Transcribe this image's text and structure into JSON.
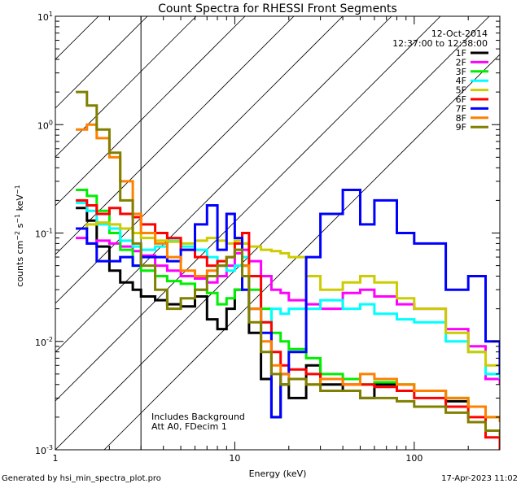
{
  "footer": {
    "left": "Generated by hsi_min_spectra_plot.pro",
    "right": "17-Apr-2023 11:02"
  },
  "chart_data": {
    "type": "line",
    "title": "Count Spectra for RHESSI Front Segments",
    "xlabel": "Energy (keV)",
    "ylabel": "counts cm⁻² s⁻¹ keV⁻¹",
    "xscale": "log",
    "yscale": "log",
    "xlim": [
      1,
      300
    ],
    "ylim": [
      0.001,
      10
    ],
    "x_ticks": [
      {
        "v": 1,
        "label": "1"
      },
      {
        "v": 10,
        "label": "10"
      },
      {
        "v": 100,
        "label": "100"
      }
    ],
    "y_ticks": [
      {
        "v": 0.001,
        "mant": "10",
        "exp": "-3"
      },
      {
        "v": 0.01,
        "mant": "10",
        "exp": "-2"
      },
      {
        "v": 0.1,
        "mant": "10",
        "exp": "-1"
      },
      {
        "v": 1,
        "mant": "10",
        "exp": "0"
      },
      {
        "v": 10,
        "mant": "10",
        "exp": "1"
      }
    ],
    "hatched_below_keV": 3,
    "date": "12-Oct-2014",
    "time_range": "12:37:00 to 12:38:00",
    "annotations": [
      "Includes Background",
      "Att A0, FDecim 1"
    ],
    "legend_position": "top-right",
    "series": [
      {
        "name": "1F",
        "color": "#000000",
        "points": [
          [
            1.3,
            0.17
          ],
          [
            1.5,
            0.13
          ],
          [
            1.7,
            0.075
          ],
          [
            2.0,
            0.045
          ],
          [
            2.3,
            0.035
          ],
          [
            2.7,
            0.03
          ],
          [
            3.0,
            0.026
          ],
          [
            3.6,
            0.024
          ],
          [
            4.2,
            0.022
          ],
          [
            5.0,
            0.021
          ],
          [
            6.0,
            0.026
          ],
          [
            7.0,
            0.016
          ],
          [
            8.0,
            0.013
          ],
          [
            9.0,
            0.02
          ],
          [
            10.0,
            0.03
          ],
          [
            11.0,
            0.05
          ],
          [
            12.0,
            0.012
          ],
          [
            14.0,
            0.0045
          ],
          [
            16.0,
            0.002
          ],
          [
            18.0,
            0.004
          ],
          [
            20.0,
            0.003
          ],
          [
            25.0,
            0.006
          ],
          [
            30.0,
            0.004
          ],
          [
            40.0,
            0.0035
          ],
          [
            50.0,
            0.003
          ],
          [
            60.0,
            0.004
          ],
          [
            80.0,
            0.0035
          ],
          [
            100.0,
            0.0035
          ],
          [
            150.0,
            0.0028
          ],
          [
            200.0,
            0.0025
          ],
          [
            250.0,
            0.0015
          ],
          [
            300.0,
            0.0012
          ]
        ]
      },
      {
        "name": "2F",
        "color": "#ff00ff",
        "points": [
          [
            1.3,
            0.09
          ],
          [
            1.5,
            0.08
          ],
          [
            1.7,
            0.085
          ],
          [
            2.0,
            0.08
          ],
          [
            2.3,
            0.075
          ],
          [
            2.7,
            0.068
          ],
          [
            3.0,
            0.062
          ],
          [
            3.6,
            0.05
          ],
          [
            4.2,
            0.045
          ],
          [
            5.0,
            0.04
          ],
          [
            6.0,
            0.038
          ],
          [
            7.0,
            0.035
          ],
          [
            8.0,
            0.04
          ],
          [
            9.0,
            0.05
          ],
          [
            10.0,
            0.065
          ],
          [
            11.0,
            0.07
          ],
          [
            12.0,
            0.055
          ],
          [
            14.0,
            0.04
          ],
          [
            16.0,
            0.03
          ],
          [
            18.0,
            0.028
          ],
          [
            20.0,
            0.024
          ],
          [
            25.0,
            0.022
          ],
          [
            30.0,
            0.02
          ],
          [
            40.0,
            0.028
          ],
          [
            50.0,
            0.03
          ],
          [
            60.0,
            0.026
          ],
          [
            80.0,
            0.022
          ],
          [
            100.0,
            0.02
          ],
          [
            150.0,
            0.013
          ],
          [
            200.0,
            0.009
          ],
          [
            250.0,
            0.0045
          ],
          [
            300.0,
            0.004
          ]
        ]
      },
      {
        "name": "3F",
        "color": "#00ee00",
        "points": [
          [
            1.3,
            0.25
          ],
          [
            1.5,
            0.22
          ],
          [
            1.7,
            0.16
          ],
          [
            2.0,
            0.1
          ],
          [
            2.3,
            0.07
          ],
          [
            2.7,
            0.05
          ],
          [
            3.0,
            0.045
          ],
          [
            3.6,
            0.04
          ],
          [
            4.2,
            0.036
          ],
          [
            5.0,
            0.034
          ],
          [
            6.0,
            0.03
          ],
          [
            7.0,
            0.028
          ],
          [
            8.0,
            0.022
          ],
          [
            9.0,
            0.025
          ],
          [
            10.0,
            0.03
          ],
          [
            11.0,
            0.08
          ],
          [
            12.0,
            0.03
          ],
          [
            14.0,
            0.02
          ],
          [
            16.0,
            0.012
          ],
          [
            18.0,
            0.01
          ],
          [
            20.0,
            0.0085
          ],
          [
            25.0,
            0.007
          ],
          [
            30.0,
            0.005
          ],
          [
            40.0,
            0.0045
          ],
          [
            50.0,
            0.004
          ],
          [
            60.0,
            0.0042
          ],
          [
            80.0,
            0.004
          ],
          [
            100.0,
            0.0035
          ],
          [
            150.0,
            0.003
          ],
          [
            200.0,
            0.0025
          ],
          [
            250.0,
            0.002
          ],
          [
            300.0,
            0.0018
          ]
        ]
      },
      {
        "name": "4F",
        "color": "#00ffff",
        "points": [
          [
            1.3,
            0.19
          ],
          [
            1.5,
            0.16
          ],
          [
            1.7,
            0.12
          ],
          [
            2.0,
            0.11
          ],
          [
            2.3,
            0.085
          ],
          [
            2.7,
            0.075
          ],
          [
            3.0,
            0.07
          ],
          [
            3.6,
            0.075
          ],
          [
            4.2,
            0.085
          ],
          [
            5.0,
            0.075
          ],
          [
            6.0,
            0.07
          ],
          [
            7.0,
            0.06
          ],
          [
            8.0,
            0.05
          ],
          [
            9.0,
            0.045
          ],
          [
            10.0,
            0.05
          ],
          [
            11.0,
            0.06
          ],
          [
            12.0,
            0.02
          ],
          [
            14.0,
            0.015
          ],
          [
            16.0,
            0.02
          ],
          [
            18.0,
            0.018
          ],
          [
            20.0,
            0.02
          ],
          [
            25.0,
            0.02
          ],
          [
            30.0,
            0.024
          ],
          [
            40.0,
            0.02
          ],
          [
            50.0,
            0.022
          ],
          [
            60.0,
            0.018
          ],
          [
            80.0,
            0.016
          ],
          [
            100.0,
            0.015
          ],
          [
            150.0,
            0.01
          ],
          [
            200.0,
            0.008
          ],
          [
            250.0,
            0.005
          ],
          [
            300.0,
            0.0045
          ]
        ]
      },
      {
        "name": "5F",
        "color": "#cccc00",
        "points": [
          [
            1.3,
            0.11
          ],
          [
            1.5,
            0.12
          ],
          [
            1.7,
            0.125
          ],
          [
            2.0,
            0.12
          ],
          [
            2.3,
            0.11
          ],
          [
            2.7,
            0.1
          ],
          [
            3.0,
            0.09
          ],
          [
            3.6,
            0.085
          ],
          [
            4.2,
            0.083
          ],
          [
            5.0,
            0.08
          ],
          [
            6.0,
            0.085
          ],
          [
            7.0,
            0.09
          ],
          [
            8.0,
            0.085
          ],
          [
            9.0,
            0.08
          ],
          [
            10.0,
            0.085
          ],
          [
            11.0,
            0.08
          ],
          [
            12.0,
            0.075
          ],
          [
            14.0,
            0.07
          ],
          [
            16.0,
            0.068
          ],
          [
            18.0,
            0.065
          ],
          [
            20.0,
            0.06
          ],
          [
            25.0,
            0.04
          ],
          [
            30.0,
            0.03
          ],
          [
            40.0,
            0.035
          ],
          [
            50.0,
            0.04
          ],
          [
            60.0,
            0.035
          ],
          [
            80.0,
            0.025
          ],
          [
            100.0,
            0.02
          ],
          [
            150.0,
            0.012
          ],
          [
            200.0,
            0.008
          ],
          [
            250.0,
            0.006
          ],
          [
            300.0,
            0.005
          ]
        ]
      },
      {
        "name": "6F",
        "color": "#ff0000",
        "points": [
          [
            1.3,
            0.2
          ],
          [
            1.5,
            0.18
          ],
          [
            1.7,
            0.15
          ],
          [
            2.0,
            0.17
          ],
          [
            2.3,
            0.15
          ],
          [
            2.7,
            0.14
          ],
          [
            3.0,
            0.12
          ],
          [
            3.6,
            0.1
          ],
          [
            4.2,
            0.09
          ],
          [
            5.0,
            0.07
          ],
          [
            6.0,
            0.06
          ],
          [
            7.0,
            0.05
          ],
          [
            8.0,
            0.055
          ],
          [
            9.0,
            0.06
          ],
          [
            10.0,
            0.08
          ],
          [
            11.0,
            0.1
          ],
          [
            12.0,
            0.04
          ],
          [
            14.0,
            0.015
          ],
          [
            16.0,
            0.008
          ],
          [
            18.0,
            0.006
          ],
          [
            20.0,
            0.0055
          ],
          [
            25.0,
            0.005
          ],
          [
            30.0,
            0.0045
          ],
          [
            40.0,
            0.004
          ],
          [
            50.0,
            0.004
          ],
          [
            60.0,
            0.0038
          ],
          [
            80.0,
            0.0035
          ],
          [
            100.0,
            0.003
          ],
          [
            150.0,
            0.0025
          ],
          [
            200.0,
            0.002
          ],
          [
            250.0,
            0.0013
          ],
          [
            300.0,
            0.001
          ]
        ]
      },
      {
        "name": "7F",
        "color": "#0000ff",
        "points": [
          [
            1.3,
            0.11
          ],
          [
            1.5,
            0.08
          ],
          [
            1.7,
            0.055
          ],
          [
            2.0,
            0.055
          ],
          [
            2.3,
            0.06
          ],
          [
            2.7,
            0.05
          ],
          [
            3.0,
            0.06
          ],
          [
            3.6,
            0.06
          ],
          [
            4.2,
            0.055
          ],
          [
            5.0,
            0.07
          ],
          [
            6.0,
            0.12
          ],
          [
            7.0,
            0.18
          ],
          [
            8.0,
            0.07
          ],
          [
            9.0,
            0.15
          ],
          [
            10.0,
            0.09
          ],
          [
            11.0,
            0.03
          ],
          [
            12.0,
            0.02
          ],
          [
            14.0,
            0.012
          ],
          [
            16.0,
            0.002
          ],
          [
            18.0,
            0.005
          ],
          [
            20.0,
            0.008
          ],
          [
            25.0,
            0.06
          ],
          [
            30.0,
            0.15
          ],
          [
            40.0,
            0.25
          ],
          [
            50.0,
            0.12
          ],
          [
            60.0,
            0.2
          ],
          [
            80.0,
            0.1
          ],
          [
            100.0,
            0.08
          ],
          [
            150.0,
            0.03
          ],
          [
            200.0,
            0.04
          ],
          [
            250.0,
            0.01
          ],
          [
            300.0,
            0.005
          ]
        ]
      },
      {
        "name": "8F",
        "color": "#ff8000",
        "points": [
          [
            1.3,
            0.9
          ],
          [
            1.5,
            1.0
          ],
          [
            1.7,
            0.75
          ],
          [
            2.0,
            0.5
          ],
          [
            2.3,
            0.3
          ],
          [
            2.7,
            0.15
          ],
          [
            3.0,
            0.1
          ],
          [
            3.6,
            0.08
          ],
          [
            4.2,
            0.06
          ],
          [
            5.0,
            0.045
          ],
          [
            6.0,
            0.04
          ],
          [
            7.0,
            0.045
          ],
          [
            8.0,
            0.05
          ],
          [
            9.0,
            0.06
          ],
          [
            10.0,
            0.07
          ],
          [
            11.0,
            0.05
          ],
          [
            12.0,
            0.02
          ],
          [
            14.0,
            0.01
          ],
          [
            16.0,
            0.006
          ],
          [
            18.0,
            0.005
          ],
          [
            20.0,
            0.0045
          ],
          [
            25.0,
            0.004
          ],
          [
            30.0,
            0.0045
          ],
          [
            40.0,
            0.004
          ],
          [
            50.0,
            0.005
          ],
          [
            60.0,
            0.0045
          ],
          [
            80.0,
            0.004
          ],
          [
            100.0,
            0.0035
          ],
          [
            150.0,
            0.003
          ],
          [
            200.0,
            0.0025
          ],
          [
            250.0,
            0.002
          ],
          [
            300.0,
            0.0018
          ]
        ]
      },
      {
        "name": "9F",
        "color": "#808000",
        "points": [
          [
            1.3,
            2.0
          ],
          [
            1.5,
            1.5
          ],
          [
            1.7,
            0.9
          ],
          [
            2.0,
            0.55
          ],
          [
            2.3,
            0.2
          ],
          [
            2.7,
            0.08
          ],
          [
            3.0,
            0.05
          ],
          [
            3.6,
            0.03
          ],
          [
            4.2,
            0.02
          ],
          [
            5.0,
            0.025
          ],
          [
            6.0,
            0.03
          ],
          [
            7.0,
            0.04
          ],
          [
            8.0,
            0.05
          ],
          [
            9.0,
            0.06
          ],
          [
            10.0,
            0.07
          ],
          [
            11.0,
            0.04
          ],
          [
            12.0,
            0.015
          ],
          [
            14.0,
            0.008
          ],
          [
            16.0,
            0.005
          ],
          [
            18.0,
            0.004
          ],
          [
            20.0,
            0.0045
          ],
          [
            25.0,
            0.004
          ],
          [
            30.0,
            0.0035
          ],
          [
            40.0,
            0.0035
          ],
          [
            50.0,
            0.003
          ],
          [
            60.0,
            0.003
          ],
          [
            80.0,
            0.0028
          ],
          [
            100.0,
            0.0025
          ],
          [
            150.0,
            0.0022
          ],
          [
            200.0,
            0.0018
          ],
          [
            250.0,
            0.0015
          ],
          [
            300.0,
            0.0013
          ]
        ]
      }
    ]
  }
}
